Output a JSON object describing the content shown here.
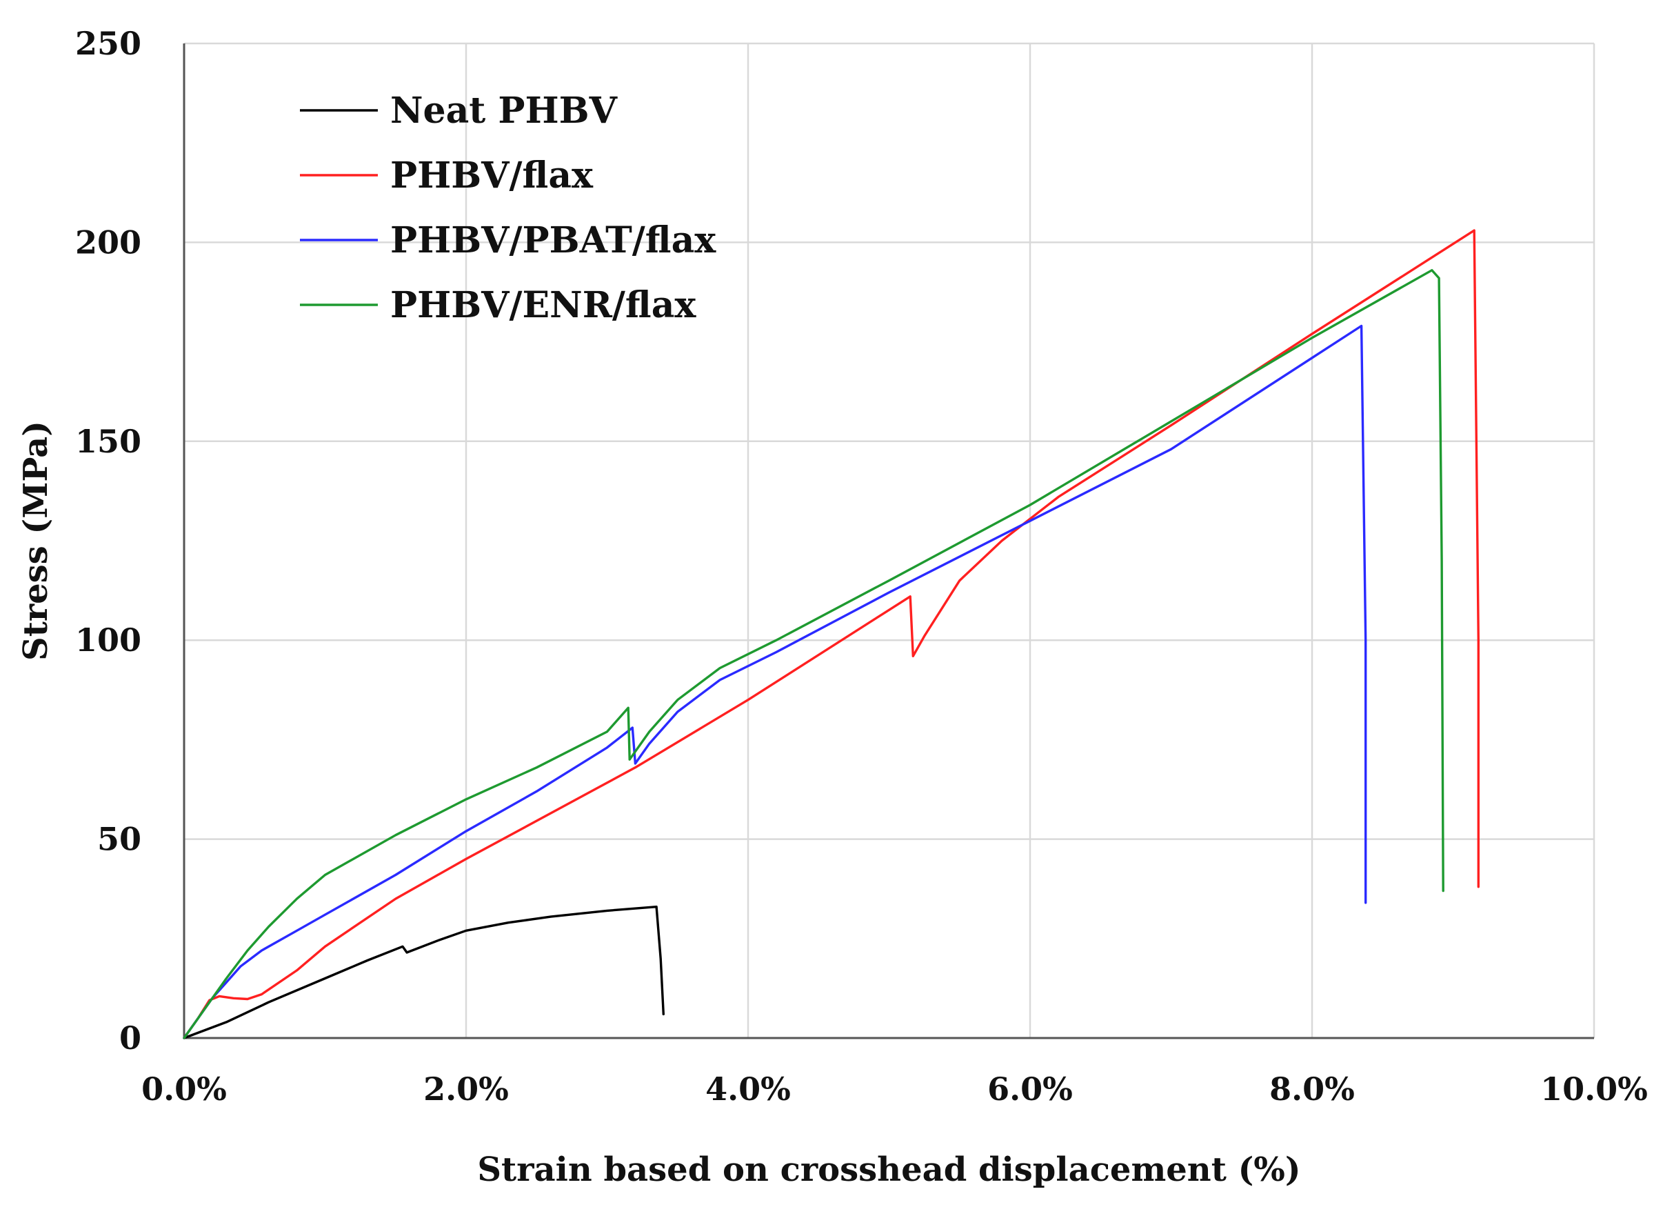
{
  "chart_data": {
    "type": "line",
    "xlabel": "Strain based on crosshead displacement (%)",
    "ylabel": "Stress (MPa)",
    "xlim": [
      0,
      10
    ],
    "ylim": [
      0,
      250
    ],
    "x_ticks": [
      0,
      2,
      4,
      6,
      8,
      10
    ],
    "x_tick_labels": [
      "0.0%",
      "2.0%",
      "4.0%",
      "6.0%",
      "8.0%",
      "10.0%"
    ],
    "y_ticks": [
      0,
      50,
      100,
      150,
      200,
      250
    ],
    "y_tick_labels": [
      "0",
      "50",
      "100",
      "150",
      "200",
      "250"
    ],
    "grid": true,
    "legend_position": "top-left",
    "series": [
      {
        "name": "Neat PHBV",
        "color": "#000000",
        "points": [
          [
            0,
            0
          ],
          [
            0.3,
            4
          ],
          [
            0.6,
            9
          ],
          [
            1.0,
            15
          ],
          [
            1.3,
            19.5
          ],
          [
            1.55,
            23
          ],
          [
            1.58,
            21.5
          ],
          [
            1.8,
            24.5
          ],
          [
            2.0,
            27
          ],
          [
            2.3,
            29
          ],
          [
            2.6,
            30.5
          ],
          [
            3.0,
            32
          ],
          [
            3.35,
            33
          ],
          [
            3.38,
            20
          ],
          [
            3.4,
            6
          ]
        ]
      },
      {
        "name": "PHBV/flax",
        "color": "#ff2020",
        "points": [
          [
            0,
            0
          ],
          [
            0.1,
            5
          ],
          [
            0.18,
            9.5
          ],
          [
            0.25,
            10.5
          ],
          [
            0.35,
            10
          ],
          [
            0.45,
            9.8
          ],
          [
            0.55,
            11
          ],
          [
            0.8,
            17
          ],
          [
            1.0,
            23
          ],
          [
            1.5,
            35
          ],
          [
            2.0,
            45
          ],
          [
            3.2,
            68
          ],
          [
            4.0,
            85
          ],
          [
            5.15,
            111
          ],
          [
            5.17,
            96
          ],
          [
            5.25,
            101
          ],
          [
            5.5,
            115
          ],
          [
            5.8,
            125
          ],
          [
            6.2,
            136
          ],
          [
            7.0,
            154
          ],
          [
            8.0,
            177
          ],
          [
            9.15,
            203
          ],
          [
            9.18,
            100
          ],
          [
            9.18,
            38
          ]
        ]
      },
      {
        "name": "PHBV/PBAT/flax",
        "color": "#2a2aff",
        "points": [
          [
            0,
            0
          ],
          [
            0.1,
            5
          ],
          [
            0.2,
            10
          ],
          [
            0.3,
            14
          ],
          [
            0.4,
            18
          ],
          [
            0.55,
            22
          ],
          [
            0.8,
            27
          ],
          [
            1.0,
            31
          ],
          [
            1.5,
            41
          ],
          [
            2.0,
            52
          ],
          [
            2.5,
            62
          ],
          [
            3.0,
            73
          ],
          [
            3.18,
            78
          ],
          [
            3.2,
            69
          ],
          [
            3.3,
            74
          ],
          [
            3.5,
            82
          ],
          [
            3.8,
            90
          ],
          [
            4.2,
            97
          ],
          [
            5.0,
            112
          ],
          [
            6.0,
            130
          ],
          [
            7.0,
            148
          ],
          [
            8.35,
            179
          ],
          [
            8.38,
            100
          ],
          [
            8.38,
            34
          ]
        ]
      },
      {
        "name": "PHBV/ENR/flax",
        "color": "#1e9a30",
        "points": [
          [
            0,
            0
          ],
          [
            0.1,
            5
          ],
          [
            0.2,
            10
          ],
          [
            0.3,
            15
          ],
          [
            0.45,
            22
          ],
          [
            0.6,
            28
          ],
          [
            0.8,
            35
          ],
          [
            1.0,
            41
          ],
          [
            1.5,
            51
          ],
          [
            2.0,
            60
          ],
          [
            2.5,
            68
          ],
          [
            3.0,
            77
          ],
          [
            3.15,
            83
          ],
          [
            3.16,
            70
          ],
          [
            3.3,
            77
          ],
          [
            3.5,
            85
          ],
          [
            3.8,
            93
          ],
          [
            4.2,
            100
          ],
          [
            5.0,
            115
          ],
          [
            6.0,
            134
          ],
          [
            7.0,
            155
          ],
          [
            8.0,
            176
          ],
          [
            8.85,
            193
          ],
          [
            8.9,
            191
          ],
          [
            8.92,
            120
          ],
          [
            8.93,
            37
          ]
        ]
      }
    ]
  }
}
